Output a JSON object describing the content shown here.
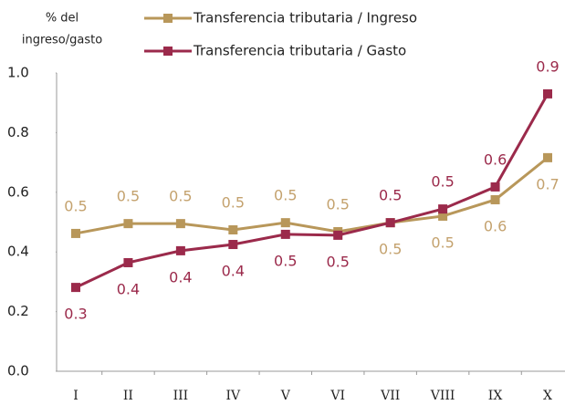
{
  "chart_data": {
    "type": "line",
    "ylabel": [
      "% del",
      "ingreso/gasto"
    ],
    "categories": [
      "I",
      "II",
      "III",
      "IV",
      "V",
      "VI",
      "VII",
      "VIII",
      "IX",
      "X"
    ],
    "series": [
      {
        "name": "Transferencia tributaria / Ingreso",
        "color": "#b8975a",
        "label_color": "#c4a26e",
        "values": [
          0.462,
          0.495,
          0.495,
          0.474,
          0.498,
          0.468,
          0.498,
          0.52,
          0.575,
          0.716
        ],
        "value_labels": [
          "0.5",
          "0.5",
          "0.5",
          "0.5",
          "0.5",
          "0.5",
          "0.5",
          "0.5",
          "0.6",
          "0.7"
        ]
      },
      {
        "name": "Transferencia tributaria / Gasto",
        "color": "#9b2a4b",
        "label_color": "#9b2a4b",
        "values": [
          0.281,
          0.364,
          0.404,
          0.425,
          0.459,
          0.456,
          0.498,
          0.544,
          0.618,
          0.93
        ],
        "value_labels": [
          "0.3",
          "0.4",
          "0.4",
          "0.4",
          "0.5",
          "0.5",
          "0.5",
          "0.5",
          "0.6",
          "0.9"
        ]
      }
    ],
    "ylim": [
      0,
      1
    ],
    "yticks": [
      {
        "value": 0,
        "label": "0.0"
      },
      0.2,
      0.4,
      0.6,
      0.8,
      {
        "value": 1,
        "label": "1.0"
      }
    ],
    "grid": false
  }
}
